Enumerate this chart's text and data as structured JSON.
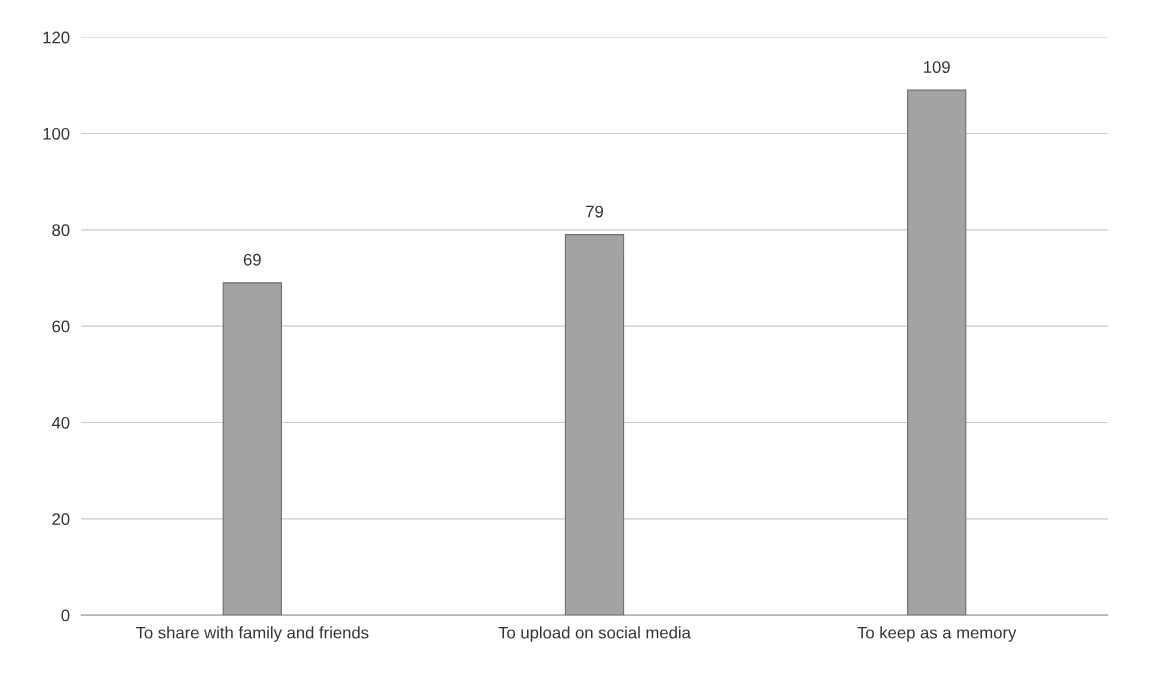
{
  "chart_data": {
    "type": "bar",
    "categories": [
      "To share with family and friends",
      "To upload on social media",
      "To keep as a memory"
    ],
    "values": [
      69,
      79,
      109
    ],
    "color": "#a3a3a3",
    "ylim": [
      0,
      120
    ],
    "yticks": [
      0,
      20,
      40,
      60,
      80,
      100,
      120
    ],
    "grid": "y",
    "data_labels": true
  }
}
